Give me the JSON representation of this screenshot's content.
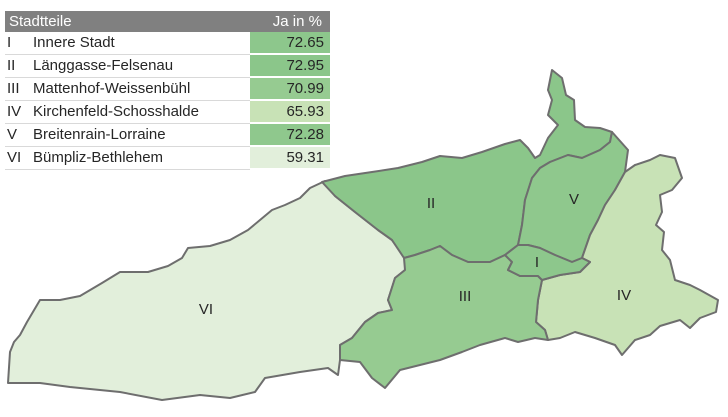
{
  "table": {
    "header_name": "Stadtteile",
    "header_value": "Ja in %",
    "rows": [
      {
        "num": "I",
        "name": "Innere Stadt",
        "value": "72.65",
        "color": "#8dc78c"
      },
      {
        "num": "II",
        "name": "Länggasse-Felsenau",
        "value": "72.95",
        "color": "#8bc68a"
      },
      {
        "num": "III",
        "name": "Mattenhof-Weissenbühl",
        "value": "70.99",
        "color": "#96cb91"
      },
      {
        "num": "IV",
        "name": "Kirchenfeld-Schosshalde",
        "value": "65.93",
        "color": "#c8e2b6"
      },
      {
        "num": "V",
        "name": "Breitenrain-Lorraine",
        "value": "72.28",
        "color": "#8fc88d"
      },
      {
        "num": "VI",
        "name": "Bümpliz-Bethlehem",
        "value": "59.31",
        "color": "#e2efdb"
      }
    ]
  },
  "map_labels": {
    "I": "I",
    "II": "II",
    "III": "III",
    "IV": "IV",
    "V": "V",
    "VI": "VI"
  }
}
